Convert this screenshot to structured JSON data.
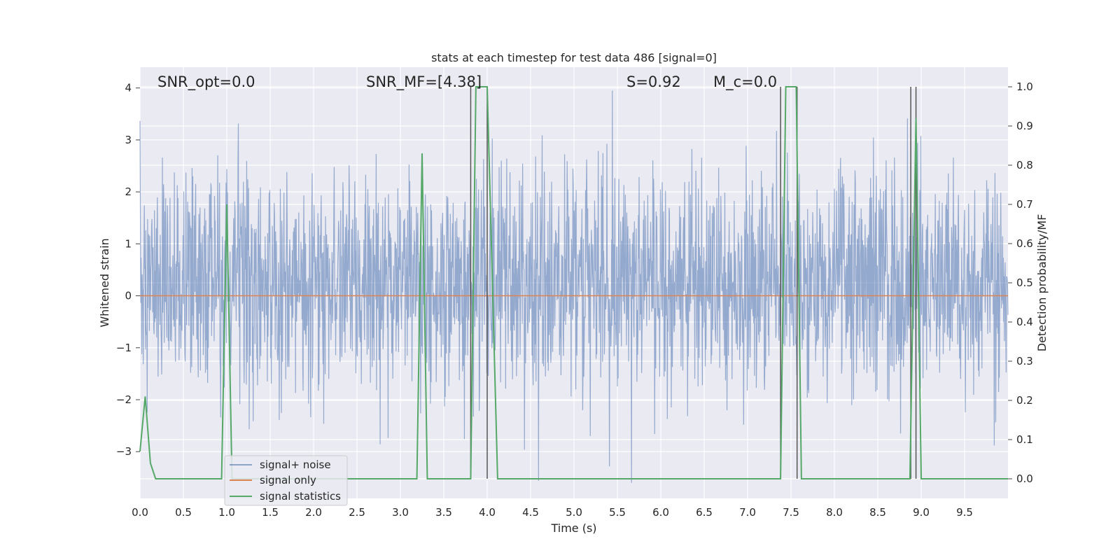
{
  "chart_data": {
    "type": "line",
    "title": "stats at each timestep for test data 486 [signal=0]",
    "xlabel": "Time (s)",
    "ylabel": "Whitened strain",
    "ylabel_right": "Detection probability/MF",
    "xlim": [
      0.0,
      10.0
    ],
    "ylim": [
      -3.9,
      4.4
    ],
    "ylim_right": [
      -0.05,
      1.05
    ],
    "x_ticks": [
      "0.0",
      "0.5",
      "1.0",
      "1.5",
      "2.0",
      "2.5",
      "3.0",
      "3.5",
      "4.0",
      "4.5",
      "5.0",
      "5.5",
      "6.0",
      "6.5",
      "7.0",
      "7.5",
      "8.0",
      "8.5",
      "9.0",
      "9.5"
    ],
    "y_ticks": [
      "4",
      "3",
      "2",
      "1",
      "0",
      "−1",
      "−2",
      "−3"
    ],
    "y_ticks_right": [
      "1.0",
      "0.9",
      "0.8",
      "0.7",
      "0.6",
      "0.5",
      "0.4",
      "0.3",
      "0.2",
      "0.1",
      "0.0"
    ],
    "grid": true,
    "legend_position": "lower-left",
    "annotations": [
      {
        "id": "snr-opt",
        "text": "SNR_opt=0.0"
      },
      {
        "id": "snr-mf",
        "text": "SNR_MF=[4.38]"
      },
      {
        "id": "s-stat",
        "text": "S=0.92"
      },
      {
        "id": "mc",
        "text": "M_c=0.0"
      }
    ],
    "series": [
      {
        "name": "signal+ noise",
        "color": "#4c72b0",
        "axis": "left",
        "style": "noise",
        "amplitude_range": [
          -3.6,
          4.1
        ]
      },
      {
        "name": "signal only",
        "color": "#dd8452",
        "axis": "left",
        "x": [
          0.0,
          10.0
        ],
        "values": [
          0.0,
          0.0
        ]
      },
      {
        "name": "signal statistics",
        "color": "#55a868",
        "axis": "right",
        "x": [
          0.0,
          0.06,
          0.12,
          0.18,
          0.94,
          1.0,
          1.06,
          3.19,
          3.25,
          3.31,
          3.81,
          3.87,
          4.0,
          4.12,
          7.38,
          7.44,
          7.56,
          7.62,
          8.87,
          8.94,
          9.0,
          10.0
        ],
        "values": [
          0.07,
          0.21,
          0.04,
          0.0,
          0.0,
          0.7,
          0.0,
          0.0,
          0.83,
          0.0,
          0.0,
          1.0,
          1.0,
          0.0,
          0.0,
          1.0,
          1.0,
          0.0,
          0.0,
          0.92,
          0.0,
          0.0
        ]
      }
    ],
    "vertical_lines": [
      {
        "x": 3.81
      },
      {
        "x": 4.0
      },
      {
        "x": 7.38
      },
      {
        "x": 7.57
      },
      {
        "x": 8.88
      },
      {
        "x": 8.94
      }
    ]
  }
}
